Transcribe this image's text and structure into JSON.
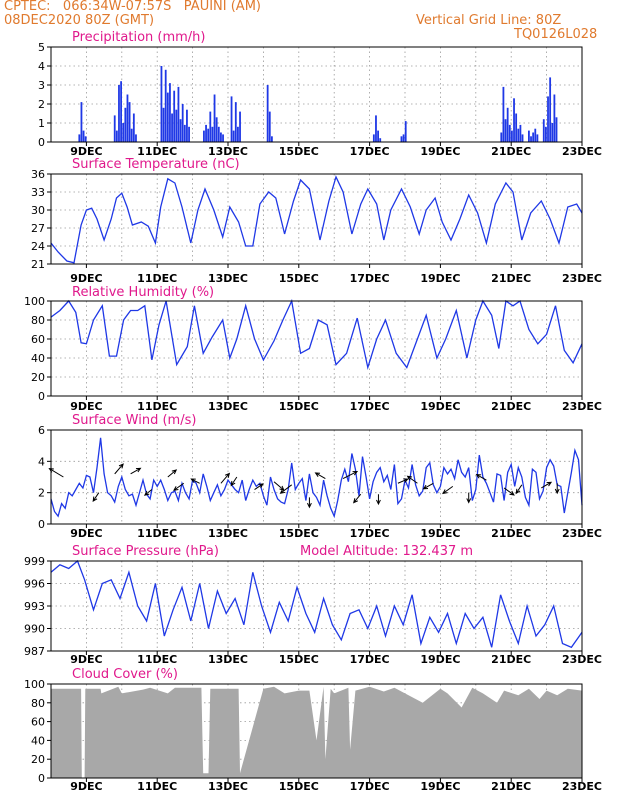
{
  "header": {
    "line1": "CPTEC:   066:34W-07:57S   PAUINI (AM)",
    "line2": "08DEC2020 80Z (GMT)",
    "grid_note": "Vertical Grid Line: 80Z",
    "model_code": "TQ0126L028",
    "model_altitude": "Model Altitude: 132.437  m"
  },
  "colors": {
    "header": "#e07a2e",
    "title": "#e0198c",
    "series": "#1f38e6",
    "cloud": "#a8a8a8",
    "arrow": "#000000"
  },
  "x_ticks": [
    "9DEC",
    "11DEC",
    "13DEC",
    "15DEC",
    "17DEC",
    "19DEC",
    "21DEC",
    "23DEC"
  ],
  "chart_data": [
    {
      "id": "precip",
      "type": "bar",
      "title": "Precipitation (mm/h)",
      "ylim": [
        0,
        5
      ],
      "yticks": [
        0,
        1,
        2,
        3,
        4,
        5
      ],
      "x_range_days": [
        0,
        15
      ],
      "x": [
        0.8,
        0.86,
        0.92,
        0.98,
        1.8,
        1.86,
        1.92,
        1.98,
        2.04,
        2.1,
        2.16,
        2.22,
        2.28,
        2.34,
        2.4,
        3.12,
        3.18,
        3.24,
        3.3,
        3.36,
        3.42,
        3.48,
        3.54,
        3.6,
        3.66,
        3.72,
        3.78,
        3.84,
        3.9,
        4.32,
        4.38,
        4.44,
        4.5,
        4.56,
        4.62,
        4.68,
        4.74,
        4.8,
        4.86,
        5.1,
        5.16,
        5.22,
        5.28,
        5.34,
        6.12,
        6.18,
        6.24,
        9.12,
        9.18,
        9.24,
        9.3,
        9.9,
        9.96,
        10.02,
        12.72,
        12.78,
        12.84,
        12.9,
        12.96,
        13.02,
        13.08,
        13.14,
        13.2,
        13.26,
        13.32,
        13.5,
        13.56,
        13.62,
        13.68,
        13.74,
        13.92,
        13.98,
        14.04,
        14.1,
        14.16,
        14.22,
        14.28
      ],
      "values": [
        0.4,
        2.1,
        0.6,
        0.3,
        1.4,
        0.6,
        3.0,
        3.2,
        1.0,
        1.8,
        2.5,
        2.1,
        0.7,
        1.5,
        0.4,
        4.0,
        1.8,
        3.8,
        2.6,
        3.1,
        1.5,
        2.7,
        1.7,
        2.9,
        1.2,
        2.0,
        0.9,
        1.7,
        0.8,
        0.6,
        0.9,
        0.7,
        1.6,
        0.8,
        2.5,
        1.3,
        0.8,
        0.5,
        0.4,
        2.4,
        0.6,
        2.1,
        0.8,
        1.6,
        3.0,
        1.6,
        0.3,
        0.4,
        1.4,
        0.6,
        0.2,
        0.3,
        0.4,
        1.1,
        0.5,
        2.9,
        1.2,
        1.8,
        0.9,
        0.6,
        2.3,
        1.5,
        0.7,
        0.9,
        0.4,
        0.6,
        0.3,
        0.5,
        0.7,
        0.4,
        1.2,
        0.8,
        2.4,
        3.4,
        1.0,
        2.5,
        1.3
      ]
    },
    {
      "id": "temp",
      "type": "line",
      "title": "Surface Temperature (nC)",
      "ylim": [
        21,
        36
      ],
      "yticks": [
        21,
        24,
        27,
        30,
        33,
        36
      ],
      "x_range_days": [
        0,
        15
      ],
      "x": [
        0,
        0.2,
        0.45,
        0.65,
        0.85,
        1.0,
        1.15,
        1.3,
        1.5,
        1.7,
        1.85,
        2.0,
        2.15,
        2.3,
        2.55,
        2.75,
        2.95,
        3.1,
        3.3,
        3.5,
        3.7,
        3.95,
        4.15,
        4.35,
        4.6,
        4.85,
        5.05,
        5.3,
        5.5,
        5.7,
        5.9,
        6.15,
        6.35,
        6.6,
        6.85,
        7.05,
        7.3,
        7.6,
        7.85,
        8.05,
        8.25,
        8.5,
        8.75,
        8.95,
        9.2,
        9.4,
        9.6,
        9.9,
        10.15,
        10.4,
        10.6,
        10.85,
        11.05,
        11.3,
        11.55,
        11.8,
        12.05,
        12.3,
        12.55,
        12.85,
        13.05,
        13.3,
        13.55,
        13.85,
        14.1,
        14.35,
        14.6,
        14.85,
        15.0
      ],
      "values": [
        24.5,
        23.0,
        21.5,
        21.2,
        27.5,
        30.0,
        30.3,
        28.5,
        25.0,
        28.5,
        32.0,
        32.8,
        30.5,
        27.5,
        28.0,
        27.3,
        24.5,
        30.5,
        35.2,
        34.5,
        30.5,
        24.5,
        30.0,
        33.5,
        30.0,
        25.5,
        30.5,
        28.0,
        24.0,
        24.0,
        31.0,
        33.0,
        32.0,
        26.0,
        31.5,
        35.0,
        33.5,
        25.0,
        31.5,
        35.5,
        33.0,
        26.0,
        31.0,
        33.5,
        31.0,
        25.0,
        30.0,
        33.5,
        30.5,
        26.0,
        30.0,
        32.0,
        28.0,
        25.0,
        28.5,
        32.5,
        29.5,
        24.5,
        31.0,
        34.5,
        33.0,
        25.0,
        29.5,
        31.5,
        28.5,
        24.5,
        30.5,
        31.0,
        29.5
      ]
    },
    {
      "id": "rh",
      "type": "line",
      "title": "Relative Humidity (%)",
      "ylim": [
        0,
        100
      ],
      "yticks": [
        0,
        20,
        40,
        60,
        80,
        100
      ],
      "x_range_days": [
        0,
        15
      ],
      "x": [
        0,
        0.25,
        0.5,
        0.7,
        0.85,
        1.0,
        1.2,
        1.45,
        1.65,
        1.85,
        2.05,
        2.25,
        2.45,
        2.65,
        2.85,
        3.05,
        3.25,
        3.55,
        3.85,
        4.05,
        4.3,
        4.55,
        4.85,
        5.05,
        5.25,
        5.5,
        5.75,
        6.0,
        6.3,
        6.55,
        6.8,
        7.05,
        7.3,
        7.55,
        7.8,
        8.05,
        8.35,
        8.65,
        8.95,
        9.2,
        9.45,
        9.75,
        10.05,
        10.35,
        10.6,
        10.9,
        11.15,
        11.45,
        11.75,
        12.0,
        12.2,
        12.45,
        12.65,
        12.85,
        13.05,
        13.25,
        13.5,
        13.75,
        14.0,
        14.25,
        14.5,
        14.75,
        15.0
      ],
      "values": [
        83,
        90,
        100,
        88,
        56,
        55,
        80,
        95,
        42,
        42,
        80,
        90,
        90,
        95,
        38,
        75,
        100,
        33,
        52,
        95,
        45,
        62,
        80,
        40,
        60,
        95,
        60,
        38,
        58,
        80,
        100,
        45,
        50,
        80,
        75,
        33,
        45,
        82,
        30,
        60,
        80,
        45,
        30,
        60,
        85,
        40,
        60,
        90,
        40,
        80,
        100,
        85,
        50,
        100,
        95,
        100,
        70,
        55,
        65,
        95,
        48,
        35,
        55
      ]
    },
    {
      "id": "wind",
      "type": "line",
      "title": "Surface Wind (m/s)",
      "ylim": [
        0,
        6
      ],
      "yticks": [
        0,
        2,
        4,
        6
      ],
      "x_range_days": [
        0,
        15
      ],
      "x": [
        0,
        0.1,
        0.2,
        0.3,
        0.4,
        0.5,
        0.6,
        0.7,
        0.8,
        0.9,
        1.0,
        1.1,
        1.2,
        1.3,
        1.4,
        1.5,
        1.6,
        1.7,
        1.8,
        1.9,
        2.0,
        2.1,
        2.2,
        2.3,
        2.4,
        2.5,
        2.6,
        2.7,
        2.8,
        2.9,
        3.0,
        3.1,
        3.2,
        3.3,
        3.4,
        3.5,
        3.6,
        3.7,
        3.8,
        3.9,
        4.0,
        4.1,
        4.2,
        4.3,
        4.4,
        4.5,
        4.6,
        4.7,
        4.8,
        4.9,
        5.0,
        5.1,
        5.2,
        5.3,
        5.4,
        5.5,
        5.6,
        5.7,
        5.8,
        5.9,
        6.0,
        6.1,
        6.2,
        6.3,
        6.4,
        6.5,
        6.6,
        6.7,
        6.8,
        6.9,
        7.0,
        7.1,
        7.2,
        7.3,
        7.4,
        7.5,
        7.6,
        7.7,
        7.8,
        7.9,
        8.0,
        8.1,
        8.2,
        8.3,
        8.4,
        8.5,
        8.6,
        8.7,
        8.8,
        8.9,
        9.0,
        9.1,
        9.2,
        9.3,
        9.4,
        9.5,
        9.6,
        9.7,
        9.8,
        9.9,
        10.0,
        10.1,
        10.2,
        10.3,
        10.4,
        10.5,
        10.6,
        10.7,
        10.8,
        10.9,
        11.0,
        11.1,
        11.2,
        11.3,
        11.4,
        11.5,
        11.6,
        11.7,
        11.8,
        11.9,
        12.0,
        12.1,
        12.2,
        12.3,
        12.4,
        12.5,
        12.6,
        12.7,
        12.8,
        12.9,
        13.0,
        13.1,
        13.2,
        13.3,
        13.4,
        13.5,
        13.6,
        13.7,
        13.8,
        13.9,
        14.0,
        14.1,
        14.2,
        14.3,
        14.4,
        14.5,
        14.6,
        14.7,
        14.8,
        14.9,
        15.0
      ],
      "values": [
        1.6,
        0.8,
        0.5,
        1.3,
        1.0,
        2.0,
        1.8,
        2.2,
        2.6,
        2.3,
        3.1,
        3.0,
        2.0,
        3.6,
        5.5,
        3.2,
        2.0,
        1.8,
        1.4,
        2.4,
        3.0,
        2.2,
        1.8,
        1.9,
        1.2,
        2.0,
        2.8,
        1.9,
        1.6,
        2.8,
        2.4,
        2.8,
        2.2,
        1.5,
        2.0,
        2.1,
        1.5,
        2.6,
        2.0,
        1.6,
        2.8,
        2.6,
        2.0,
        3.2,
        2.4,
        1.5,
        2.0,
        2.5,
        1.8,
        2.2,
        2.8,
        2.5,
        2.2,
        2.0,
        2.8,
        1.5,
        2.2,
        2.8,
        2.4,
        2.6,
        1.8,
        1.2,
        3.0,
        2.2,
        1.6,
        1.4,
        1.3,
        2.2,
        3.9,
        2.2,
        2.6,
        2.9,
        1.5,
        3.2,
        2.0,
        1.7,
        1.2,
        2.8,
        1.8,
        1.0,
        0.5,
        1.5,
        2.8,
        3.5,
        2.7,
        4.5,
        3.5,
        1.8,
        4.3,
        3.0,
        1.6,
        2.7,
        3.3,
        3.6,
        2.7,
        3.1,
        2.2,
        3.8,
        1.3,
        1.6,
        2.8,
        2.3,
        3.8,
        2.5,
        1.8,
        2.1,
        3.6,
        3.9,
        2.5,
        2.0,
        2.4,
        3.6,
        3.2,
        3.5,
        2.9,
        4.1,
        3.3,
        3.0,
        3.6,
        1.5,
        2.2,
        4.4,
        3.0,
        2.6,
        2.0,
        1.4,
        3.2,
        3.1,
        1.5,
        3.3,
        3.8,
        2.4,
        3.6,
        3.0,
        1.7,
        1.2,
        3.5,
        3.3,
        1.6,
        2.1,
        3.6,
        4.1,
        3.7,
        2.5,
        2.4,
        0.7,
        2.0,
        3.3,
        4.7,
        4.1,
        1.2
      ]
    },
    {
      "id": "wind_arrows",
      "type": "vector",
      "title": "Surface Wind direction",
      "x": [
        0.35,
        1.35,
        1.8,
        2.25,
        2.85,
        3.3,
        3.75,
        4.2,
        4.8,
        5.25,
        5.75,
        6.3,
        6.8,
        7.3,
        7.75,
        8.25,
        8.75,
        9.25,
        9.8,
        10.35,
        10.8,
        11.35,
        11.8,
        12.3,
        12.8,
        13.3,
        13.85,
        14.3
      ],
      "y": [
        3.0,
        2.0,
        3.2,
        3.2,
        2.2,
        3.0,
        2.6,
        2.6,
        2.6,
        3.0,
        2.2,
        2.7,
        2.5,
        1.7,
        2.9,
        2.9,
        1.9,
        1.9,
        2.6,
        2.6,
        2.6,
        2.4,
        2.0,
        2.8,
        2.3,
        2.5,
        2.3,
        2.6
      ],
      "u": [
        -1.0,
        -0.4,
        0.6,
        0.7,
        -0.5,
        0.6,
        -0.7,
        -0.6,
        0.6,
        -0.4,
        0.6,
        0.7,
        -0.8,
        0.0,
        -0.7,
        1.0,
        -0.5,
        0.0,
        0.7,
        -0.7,
        -0.7,
        -0.7,
        0.0,
        -0.7,
        0.7,
        -0.4,
        0.7,
        0.0
      ],
      "v": [
        0.6,
        -0.6,
        0.7,
        0.4,
        -0.4,
        0.5,
        -0.5,
        0.3,
        0.7,
        -0.6,
        0.4,
        -0.6,
        -0.6,
        -0.7,
        0.4,
        0.5,
        -0.6,
        -0.7,
        0.3,
        0.5,
        -0.4,
        -0.5,
        -0.7,
        0.4,
        -0.5,
        -0.6,
        0.4,
        -0.7
      ]
    },
    {
      "id": "pressure",
      "type": "line",
      "title": "Surface Pressure (hPa)",
      "ylim": [
        987,
        999
      ],
      "yticks": [
        987,
        990,
        993,
        996,
        999
      ],
      "x_range_days": [
        0,
        15
      ],
      "x": [
        0,
        0.25,
        0.5,
        0.75,
        0.95,
        1.2,
        1.45,
        1.7,
        1.95,
        2.2,
        2.45,
        2.7,
        2.95,
        3.2,
        3.45,
        3.7,
        3.95,
        4.2,
        4.45,
        4.7,
        4.95,
        5.2,
        5.45,
        5.7,
        5.95,
        6.2,
        6.45,
        6.7,
        6.95,
        7.2,
        7.45,
        7.7,
        7.95,
        8.2,
        8.45,
        8.7,
        8.95,
        9.2,
        9.45,
        9.7,
        9.95,
        10.2,
        10.45,
        10.7,
        10.95,
        11.2,
        11.45,
        11.7,
        11.95,
        12.2,
        12.45,
        12.7,
        12.95,
        13.2,
        13.45,
        13.7,
        13.95,
        14.2,
        14.45,
        14.7,
        15.0
      ],
      "values": [
        997.5,
        998.5,
        998.0,
        999.0,
        996.5,
        992.5,
        996.0,
        996.5,
        994.0,
        997.5,
        993.0,
        991.0,
        996.0,
        989.0,
        992.5,
        995.5,
        991.0,
        996.0,
        990.0,
        995.0,
        992.0,
        994.0,
        990.5,
        997.5,
        993.0,
        989.5,
        993.5,
        991.0,
        995.5,
        992.0,
        989.5,
        994.0,
        990.5,
        988.5,
        992.0,
        992.5,
        990.0,
        993.0,
        989.0,
        993.0,
        990.5,
        994.5,
        988.0,
        991.5,
        989.5,
        992.0,
        988.0,
        992.0,
        990.0,
        991.5,
        987.5,
        994.5,
        991.0,
        988.0,
        993.0,
        989.0,
        990.5,
        993.0,
        988.0,
        987.5,
        989.5
      ]
    },
    {
      "id": "cloud",
      "type": "area",
      "title": "Cloud Cover (%)",
      "ylim": [
        0,
        100
      ],
      "yticks": [
        0,
        20,
        40,
        60,
        80,
        100
      ],
      "x_range_days": [
        0,
        15
      ],
      "x": [
        0,
        0.85,
        0.87,
        0.95,
        0.97,
        1.4,
        1.42,
        1.9,
        2.0,
        2.6,
        2.8,
        3.3,
        3.5,
        4.25,
        4.3,
        4.45,
        4.5,
        5.3,
        5.34,
        6.0,
        6.3,
        6.6,
        7.0,
        7.3,
        7.5,
        7.7,
        7.75,
        7.9,
        8.0,
        8.4,
        8.45,
        8.6,
        9.0,
        9.4,
        9.7,
        10.0,
        10.5,
        11.0,
        11.2,
        11.6,
        11.9,
        12.2,
        12.6,
        12.8,
        13.2,
        13.5,
        13.8,
        14.0,
        14.3,
        14.6,
        15.0
      ],
      "values": [
        95,
        95,
        0,
        0,
        95,
        95,
        90,
        97,
        90,
        94,
        96,
        90,
        96,
        96,
        5,
        5,
        95,
        95,
        5,
        95,
        97,
        90,
        93,
        93,
        40,
        97,
        20,
        95,
        90,
        96,
        30,
        93,
        97,
        92,
        96,
        90,
        80,
        95,
        90,
        75,
        96,
        90,
        80,
        93,
        88,
        95,
        84,
        93,
        88,
        95,
        93
      ]
    }
  ]
}
